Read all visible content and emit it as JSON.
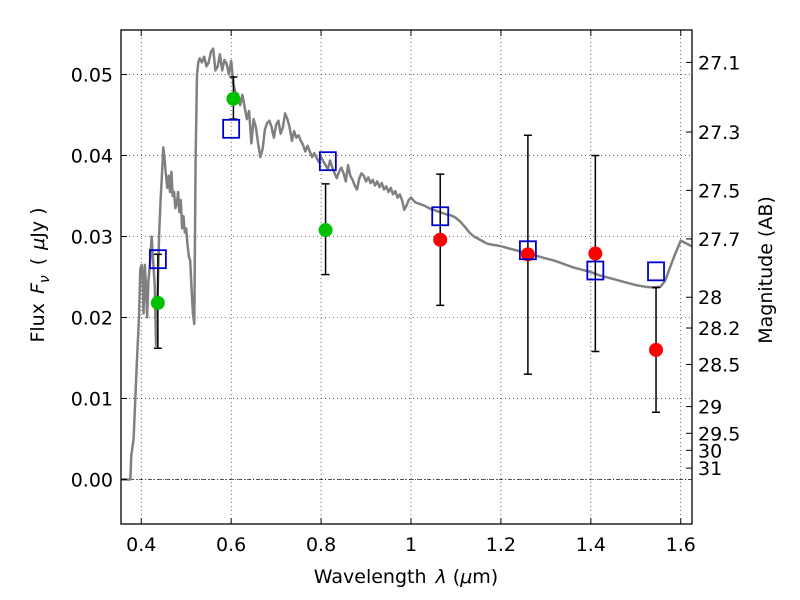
{
  "chart_data": {
    "type": "scatter",
    "xlabel_text": "Wavelength",
    "xlabel_symbol": "λ",
    "xlabel_unit_prefix": "(",
    "xlabel_unit_mu": "μ",
    "xlabel_unit_suffix": "m)",
    "ylabel_text": "Flux",
    "ylabel_symbol": "F",
    "ylabel_subscript": "ν",
    "ylabel_unit_prefix": "(",
    "ylabel_unit_mu": "μ",
    "ylabel_unit_suffix": "Jy )",
    "y2label": "Magnitude (AB)",
    "xlim": [
      0.355,
      1.625
    ],
    "ylim": [
      -0.0055,
      0.0555
    ],
    "grid": true,
    "x_ticks": [
      {
        "value": 0.4,
        "label": "0.4"
      },
      {
        "value": 0.6,
        "label": "0.6"
      },
      {
        "value": 0.8,
        "label": "0.8"
      },
      {
        "value": 1.0,
        "label": "1"
      },
      {
        "value": 1.2,
        "label": "1.2"
      },
      {
        "value": 1.4,
        "label": "1.4"
      },
      {
        "value": 1.6,
        "label": "1.6"
      }
    ],
    "y_ticks": [
      {
        "value": 0.0,
        "label": "0.00"
      },
      {
        "value": 0.01,
        "label": "0.01"
      },
      {
        "value": 0.02,
        "label": "0.02"
      },
      {
        "value": 0.03,
        "label": "0.03"
      },
      {
        "value": 0.04,
        "label": "0.04"
      },
      {
        "value": 0.05,
        "label": "0.05"
      }
    ],
    "y2_ticks": [
      {
        "label": "27.1",
        "flux": 0.0515
      },
      {
        "label": "27.3",
        "flux": 0.0429
      },
      {
        "label": "27.5",
        "flux": 0.0357
      },
      {
        "label": "27.7",
        "flux": 0.0297
      },
      {
        "label": "28",
        "flux": 0.0225
      },
      {
        "label": "28.2",
        "flux": 0.0187
      },
      {
        "label": "28.5",
        "flux": 0.0142
      },
      {
        "label": "29",
        "flux": 0.009
      },
      {
        "label": "29.5",
        "flux": 0.0057
      },
      {
        "label": "30",
        "flux": 0.0036
      },
      {
        "label": "31",
        "flux": 0.0014
      }
    ],
    "series": [
      {
        "kind": "line",
        "color": "#808080",
        "points": [
          [
            0.355,
            0.0
          ],
          [
            0.37,
            0.0
          ],
          [
            0.376,
            0.0
          ],
          [
            0.378,
            0.003
          ],
          [
            0.383,
            0.005
          ],
          [
            0.39,
            0.014
          ],
          [
            0.395,
            0.02
          ],
          [
            0.398,
            0.026
          ],
          [
            0.401,
            0.0265
          ],
          [
            0.403,
            0.025
          ],
          [
            0.405,
            0.0205
          ],
          [
            0.408,
            0.0265
          ],
          [
            0.41,
            0.0245
          ],
          [
            0.413,
            0.02
          ],
          [
            0.416,
            0.0245
          ],
          [
            0.42,
            0.027
          ],
          [
            0.423,
            0.03
          ],
          [
            0.426,
            0.0275
          ],
          [
            0.43,
            0.024
          ],
          [
            0.433,
            0.0165
          ],
          [
            0.436,
            0.022
          ],
          [
            0.44,
            0.0305
          ],
          [
            0.443,
            0.0345
          ],
          [
            0.446,
            0.0375
          ],
          [
            0.449,
            0.041
          ],
          [
            0.452,
            0.0395
          ],
          [
            0.455,
            0.0375
          ],
          [
            0.458,
            0.036
          ],
          [
            0.461,
            0.0375
          ],
          [
            0.464,
            0.0355
          ],
          [
            0.467,
            0.038
          ],
          [
            0.47,
            0.035
          ],
          [
            0.473,
            0.0355
          ],
          [
            0.476,
            0.0335
          ],
          [
            0.479,
            0.034
          ],
          [
            0.482,
            0.0355
          ],
          [
            0.485,
            0.033
          ],
          [
            0.488,
            0.0345
          ],
          [
            0.491,
            0.031
          ],
          [
            0.494,
            0.0325
          ],
          [
            0.497,
            0.0305
          ],
          [
            0.5,
            0.031
          ],
          [
            0.503,
            0.029
          ],
          [
            0.506,
            0.0275
          ],
          [
            0.509,
            0.027
          ],
          [
            0.512,
            0.0235
          ],
          [
            0.515,
            0.0205
          ],
          [
            0.518,
            0.0192
          ],
          [
            0.521,
            0.0395
          ],
          [
            0.524,
            0.05
          ],
          [
            0.527,
            0.0515
          ],
          [
            0.53,
            0.052
          ],
          [
            0.535,
            0.0515
          ],
          [
            0.54,
            0.0522
          ],
          [
            0.545,
            0.051
          ],
          [
            0.55,
            0.0515
          ],
          [
            0.555,
            0.0528
          ],
          [
            0.56,
            0.0532
          ],
          [
            0.565,
            0.0505
          ],
          [
            0.57,
            0.051
          ],
          [
            0.575,
            0.0525
          ],
          [
            0.58,
            0.0505
          ],
          [
            0.585,
            0.0518
          ],
          [
            0.59,
            0.0513
          ],
          [
            0.595,
            0.05
          ],
          [
            0.6,
            0.0517
          ],
          [
            0.605,
            0.0488
          ],
          [
            0.61,
            0.0478
          ],
          [
            0.615,
            0.0476
          ],
          [
            0.62,
            0.0462
          ],
          [
            0.625,
            0.0475
          ],
          [
            0.63,
            0.046
          ],
          [
            0.635,
            0.0445
          ],
          [
            0.64,
            0.0455
          ],
          [
            0.645,
            0.0415
          ],
          [
            0.65,
            0.0445
          ],
          [
            0.655,
            0.0435
          ],
          [
            0.66,
            0.0415
          ],
          [
            0.665,
            0.0398
          ],
          [
            0.67,
            0.0408
          ],
          [
            0.675,
            0.0432
          ],
          [
            0.68,
            0.044
          ],
          [
            0.685,
            0.0443
          ],
          [
            0.69,
            0.0435
          ],
          [
            0.695,
            0.0422
          ],
          [
            0.7,
            0.0438
          ],
          [
            0.705,
            0.0443
          ],
          [
            0.71,
            0.0427
          ],
          [
            0.715,
            0.0435
          ],
          [
            0.72,
            0.0452
          ],
          [
            0.725,
            0.0445
          ],
          [
            0.73,
            0.0435
          ],
          [
            0.735,
            0.0418
          ],
          [
            0.74,
            0.043
          ],
          [
            0.745,
            0.0422
          ],
          [
            0.75,
            0.0425
          ],
          [
            0.755,
            0.0418
          ],
          [
            0.76,
            0.0413
          ],
          [
            0.765,
            0.0405
          ],
          [
            0.77,
            0.0412
          ],
          [
            0.775,
            0.0405
          ],
          [
            0.78,
            0.0398
          ],
          [
            0.785,
            0.0403
          ],
          [
            0.79,
            0.0397
          ],
          [
            0.795,
            0.0392
          ],
          [
            0.8,
            0.0398
          ],
          [
            0.805,
            0.0393
          ],
          [
            0.81,
            0.0388
          ],
          [
            0.815,
            0.0383
          ],
          [
            0.82,
            0.0394
          ],
          [
            0.825,
            0.0385
          ],
          [
            0.83,
            0.0378
          ],
          [
            0.835,
            0.0372
          ],
          [
            0.84,
            0.038
          ],
          [
            0.845,
            0.0385
          ],
          [
            0.85,
            0.0378
          ],
          [
            0.855,
            0.0368
          ],
          [
            0.86,
            0.0388
          ],
          [
            0.865,
            0.0375
          ],
          [
            0.87,
            0.037
          ],
          [
            0.875,
            0.0363
          ],
          [
            0.88,
            0.0358
          ],
          [
            0.885,
            0.0372
          ],
          [
            0.89,
            0.0378
          ],
          [
            0.895,
            0.0375
          ],
          [
            0.9,
            0.0368
          ],
          [
            0.905,
            0.0373
          ],
          [
            0.91,
            0.0366
          ],
          [
            0.915,
            0.037
          ],
          [
            0.92,
            0.0363
          ],
          [
            0.925,
            0.0368
          ],
          [
            0.93,
            0.0361
          ],
          [
            0.935,
            0.0366
          ],
          [
            0.94,
            0.0358
          ],
          [
            0.945,
            0.0362
          ],
          [
            0.95,
            0.0355
          ],
          [
            0.955,
            0.036
          ],
          [
            0.96,
            0.0352
          ],
          [
            0.965,
            0.0356
          ],
          [
            0.97,
            0.0348
          ],
          [
            0.975,
            0.0352
          ],
          [
            0.98,
            0.0345
          ],
          [
            0.985,
            0.0333
          ],
          [
            0.99,
            0.0338
          ],
          [
            0.995,
            0.0345
          ],
          [
            1.0,
            0.0348
          ],
          [
            1.005,
            0.0345
          ],
          [
            1.01,
            0.0342
          ],
          [
            1.02,
            0.034
          ],
          [
            1.03,
            0.0338
          ],
          [
            1.04,
            0.0335
          ],
          [
            1.05,
            0.0333
          ],
          [
            1.06,
            0.0331
          ],
          [
            1.07,
            0.0329
          ],
          [
            1.08,
            0.0327
          ],
          [
            1.09,
            0.0326
          ],
          [
            1.1,
            0.0323
          ],
          [
            1.11,
            0.0318
          ],
          [
            1.12,
            0.0312
          ],
          [
            1.13,
            0.0305
          ],
          [
            1.14,
            0.03
          ],
          [
            1.15,
            0.0297
          ],
          [
            1.16,
            0.0294
          ],
          [
            1.17,
            0.0291
          ],
          [
            1.18,
            0.029
          ],
          [
            1.19,
            0.0289
          ],
          [
            1.2,
            0.0288
          ],
          [
            1.22,
            0.0285
          ],
          [
            1.24,
            0.0282
          ],
          [
            1.26,
            0.0279
          ],
          [
            1.28,
            0.0276
          ],
          [
            1.3,
            0.0273
          ],
          [
            1.32,
            0.027
          ],
          [
            1.34,
            0.0266
          ],
          [
            1.36,
            0.0262
          ],
          [
            1.38,
            0.0259
          ],
          [
            1.4,
            0.0256
          ],
          [
            1.42,
            0.0252
          ],
          [
            1.44,
            0.0249
          ],
          [
            1.46,
            0.0246
          ],
          [
            1.48,
            0.0243
          ],
          [
            1.5,
            0.024
          ],
          [
            1.52,
            0.0238
          ],
          [
            1.54,
            0.0237
          ],
          [
            1.555,
            0.0238
          ],
          [
            1.565,
            0.0245
          ],
          [
            1.575,
            0.026
          ],
          [
            1.585,
            0.0275
          ],
          [
            1.6,
            0.0295
          ],
          [
            1.61,
            0.0292
          ],
          [
            1.625,
            0.0288
          ]
        ]
      },
      {
        "kind": "errorbar",
        "color": "#000000",
        "bars": [
          {
            "x": 0.437,
            "low": 0.0162,
            "high": 0.0278
          },
          {
            "x": 0.605,
            "low": 0.0445,
            "high": 0.0497
          },
          {
            "x": 0.81,
            "low": 0.0253,
            "high": 0.0365
          },
          {
            "x": 1.065,
            "low": 0.0215,
            "high": 0.0377
          },
          {
            "x": 1.26,
            "low": 0.013,
            "high": 0.0425
          },
          {
            "x": 1.41,
            "low": 0.0158,
            "high": 0.04
          },
          {
            "x": 1.545,
            "low": 0.0083,
            "high": 0.0237
          }
        ]
      },
      {
        "kind": "scatter",
        "marker": "circle",
        "color": "#00c000",
        "points": [
          [
            0.437,
            0.0218
          ],
          [
            0.605,
            0.047
          ],
          [
            0.81,
            0.0308
          ]
        ]
      },
      {
        "kind": "scatter",
        "marker": "circle",
        "color": "#ff0000",
        "points": [
          [
            1.065,
            0.0296
          ],
          [
            1.26,
            0.0278
          ],
          [
            1.41,
            0.0279
          ],
          [
            1.545,
            0.016
          ]
        ]
      },
      {
        "kind": "scatter",
        "marker": "square",
        "color": "#0000cc",
        "points": [
          [
            0.437,
            0.0272
          ],
          [
            0.6,
            0.0433
          ],
          [
            0.815,
            0.0393
          ],
          [
            1.065,
            0.0325
          ],
          [
            1.26,
            0.0283
          ],
          [
            1.41,
            0.0258
          ],
          [
            1.545,
            0.0257
          ]
        ]
      }
    ]
  }
}
